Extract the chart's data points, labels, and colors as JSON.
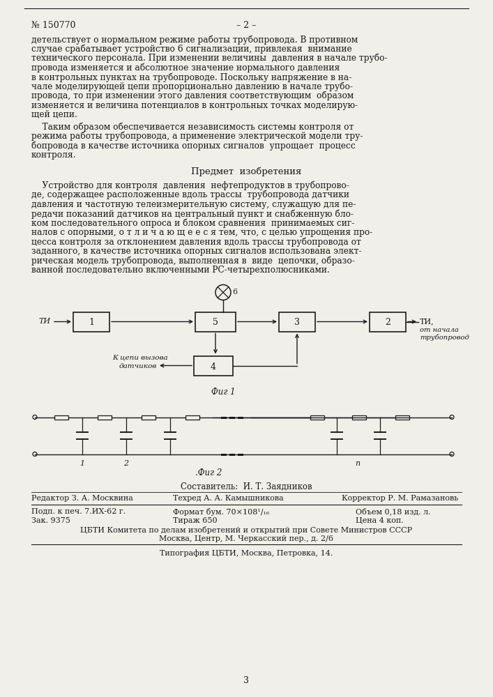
{
  "page_number_left": "№ 150770",
  "page_number_center": "– 2 –",
  "body_text_para1": [
    "детельствует о нормальном режиме работы трубопровода. В противном",
    "случае срабатывает устройство 6 сигнализации, привлекая  внимание",
    "технического персонала. При изменении величины  давления в начале трубо-",
    "провода изменяется и абсолютное значение нормального давления",
    "в контрольных пунктах на трубопроводе. Поскольку напряжение в на-",
    "чале моделирующей цепи пропорционально давлению в начале трубо-",
    "провода, то при изменении этого давления соответствующим  образом",
    "изменяется и величина потенциалов в контрольных точках моделирую-",
    "щей цепи."
  ],
  "body_text_para2": [
    "    Таким образом обеспечивается независимость системы контроля от",
    "режима работы трубопровода, а применение электрической модели тру-",
    "бопровода в качестве источника опорных сигналов  упрощает  процесс",
    "контроля."
  ],
  "predmet_title": "Предмет  изобретения",
  "predmet_text": [
    "    Устройство для контроля  давления  нефтепродуктов в трубопрово-",
    "де, содержащее расположенные вдоль трассы  трубопровода датчики",
    "давления и частотную телеизмерительную систему, служащую для пе-",
    "редачи показаний датчиков на центральный пункт и снабженную бло-",
    "ком последовательного опроса и блоком сравнения  принимаемых сиг-",
    "налов с опорными, о т л и ч а ю щ е е с я тем, что, с целью упрощения про-",
    "цесса контроля за отклонением давления вдоль трассы трубопровода от",
    "заданного, в качестве источника опорных сигналов использована элект-",
    "рическая модель трубопровода, выполненная в  виде  цепочки, образо-",
    "ванной последовательно включенными РС-четырехполюсниками."
  ],
  "fig1_label": "Фиг 1",
  "fig2_label": "Фиг 2",
  "footer_composer": "Составитель:  И. Т. Заядников",
  "footer_editor": "Редактор З. А. Москвина",
  "footer_tekhred": "Техред А. А. Камышникова",
  "footer_corrector": "Корректор Р. М. Рамазановь",
  "footer_pod": "Подп. к печ. 7.ИХ-62 г.",
  "footer_format": "Формат бум. 70×108¹/₁₆",
  "footer_volume": "Объем 0,18 изд. л.",
  "footer_zak": "Зак. 9375",
  "footer_tirazh": "Тираж 650",
  "footer_price": "Цена 4 коп.",
  "footer_tsbti": "ЦБТИ Комитета по делам изобретений и открытий при Совете Министров СССР",
  "footer_moscow": "Москва, Центр, М. Черкасский пер., д. 2/6",
  "footer_typog": "Типография ЦБТИ, Москва, Петровка, 14.",
  "page_num": "3",
  "bg_color": "#f0efea",
  "text_color": "#1a1a1a",
  "line_color": "#1a1a1a"
}
